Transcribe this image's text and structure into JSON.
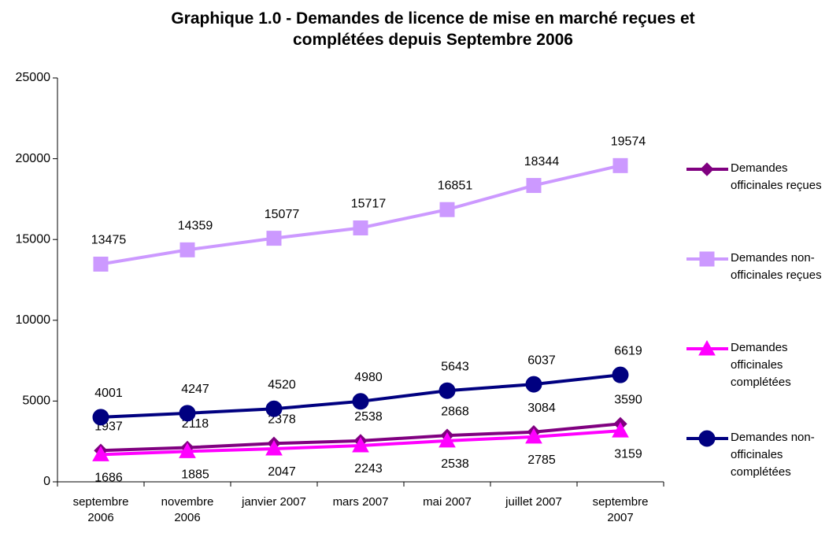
{
  "chart_data": {
    "type": "line",
    "title": "Graphique 1.0 - Demandes de licence de mise en marché reçues et complétées depuis Septembre 2006",
    "categories": [
      "septembre 2006",
      "novembre 2006",
      "janvier 2007",
      "mars 2007",
      "mai 2007",
      "juillet 2007",
      "septembre 2007"
    ],
    "series": [
      {
        "name": "Demandes officinales reçues",
        "color": "#800080",
        "marker": "diamond",
        "label_pos": "above",
        "values": [
          1937,
          2118,
          2378,
          2538,
          2868,
          3084,
          3590
        ]
      },
      {
        "name": "Demandes non-officinales reçues",
        "color": "#CC99FF",
        "marker": "square",
        "label_pos": "above",
        "values": [
          13475,
          14359,
          15077,
          15717,
          16851,
          18344,
          19574
        ]
      },
      {
        "name": "Demandes officinales complétées",
        "color": "#FF00FF",
        "marker": "triangle",
        "label_pos": "below",
        "values": [
          1686,
          1885,
          2047,
          2243,
          2538,
          2785,
          3159
        ]
      },
      {
        "name": "Demandes non-officinales complétées",
        "color": "#000080",
        "marker": "circle",
        "label_pos": "above",
        "values": [
          4001,
          4247,
          4520,
          4980,
          5643,
          6037,
          6619
        ]
      }
    ],
    "ylim": [
      0,
      25000
    ],
    "yticks": [
      0,
      5000,
      10000,
      15000,
      20000,
      25000
    ],
    "grid": false,
    "legend": "right"
  }
}
